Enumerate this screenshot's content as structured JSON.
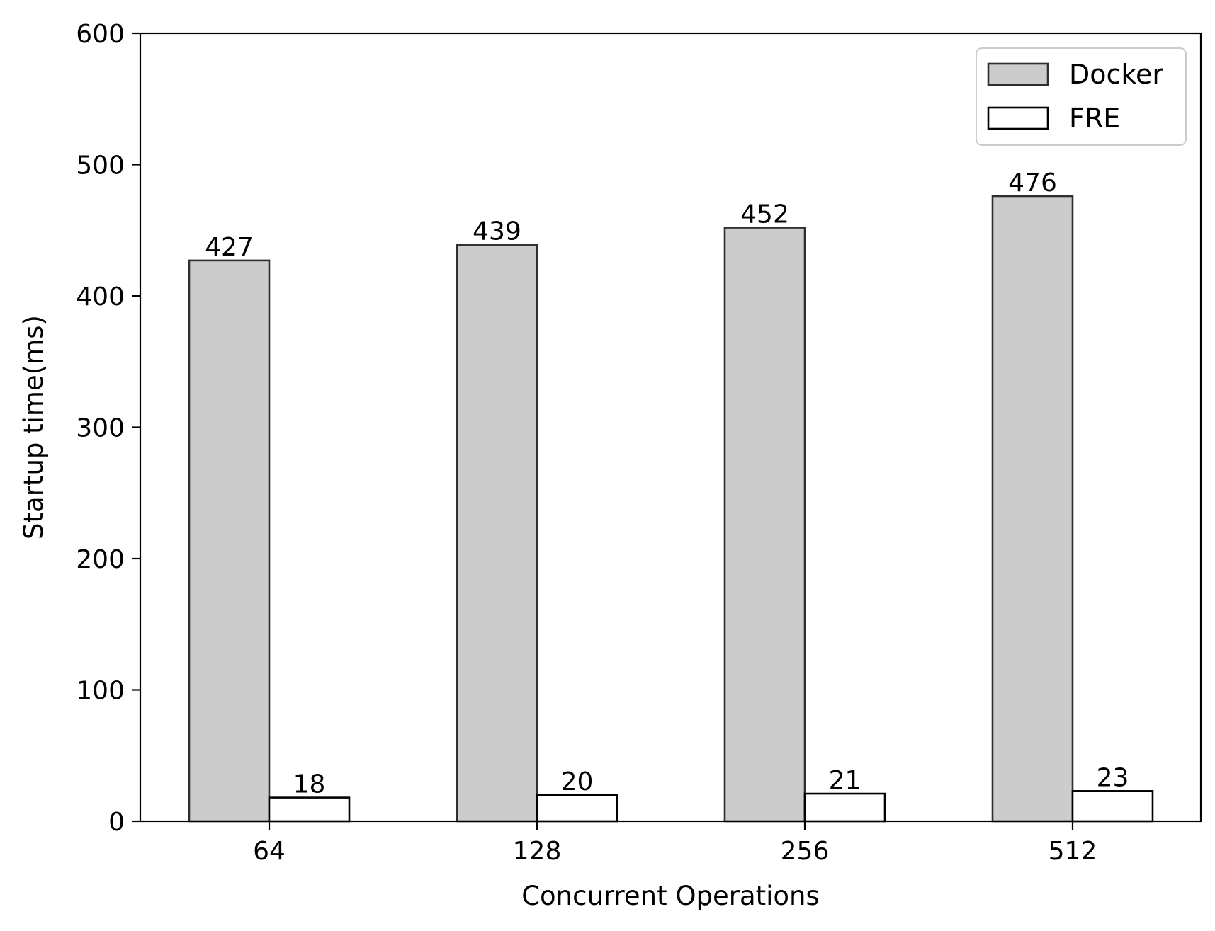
{
  "chart_data": {
    "type": "bar",
    "categories": [
      "64",
      "128",
      "256",
      "512"
    ],
    "series": [
      {
        "name": "Docker",
        "values": [
          427,
          439,
          452,
          476
        ],
        "color": "#cccccc",
        "stroke": "#2f2f2f"
      },
      {
        "name": "FRE",
        "values": [
          18,
          20,
          21,
          23
        ],
        "color": "#ffffff",
        "stroke": "#000000"
      }
    ],
    "xlabel": "Concurrent Operations",
    "ylabel": "Startup time(ms)",
    "ylim": [
      0,
      600
    ],
    "yticks": [
      0,
      100,
      200,
      300,
      400,
      500,
      600
    ],
    "legend_position": "top-right",
    "grid": false
  }
}
